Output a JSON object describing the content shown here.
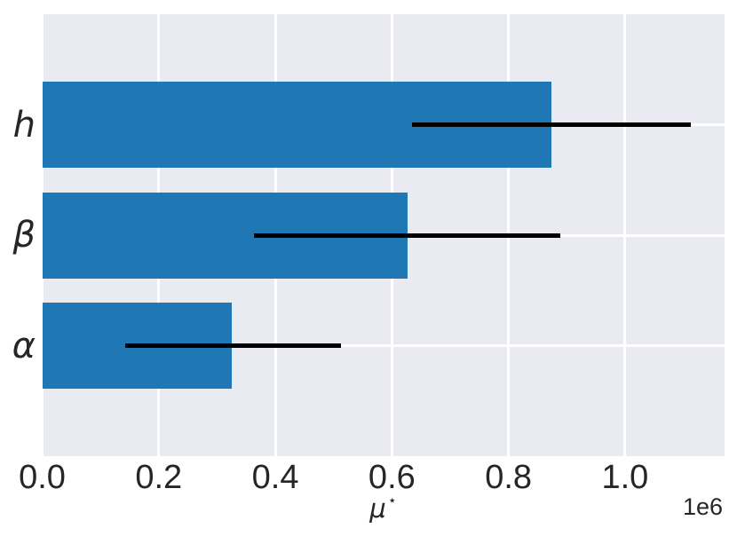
{
  "chart_data": {
    "type": "bar",
    "orientation": "horizontal",
    "title": "",
    "xlabel": "μ⋆",
    "xlabel_symbol": "μ",
    "xlabel_superscript": "⋆",
    "offset_label": "1e6",
    "categories": [
      "h",
      "β",
      "α"
    ],
    "values": [
      873000,
      627000,
      326000
    ],
    "error_low": [
      634000,
      364000,
      142000
    ],
    "error_high": [
      1113000,
      889000,
      512000
    ],
    "xlim": [
      0,
      1170000
    ],
    "xticks": [
      0,
      200000,
      400000,
      600000,
      800000,
      1000000
    ],
    "xtick_labels": [
      "0.0",
      "0.2",
      "0.4",
      "0.6",
      "0.8",
      "1.0"
    ],
    "grid": true,
    "legend": false,
    "colors": {
      "bar": "#1f77b4",
      "plot_background": "#eaeaf2",
      "gridline": "#ffffff",
      "error_bar": "#000000",
      "text": "#262626"
    }
  }
}
